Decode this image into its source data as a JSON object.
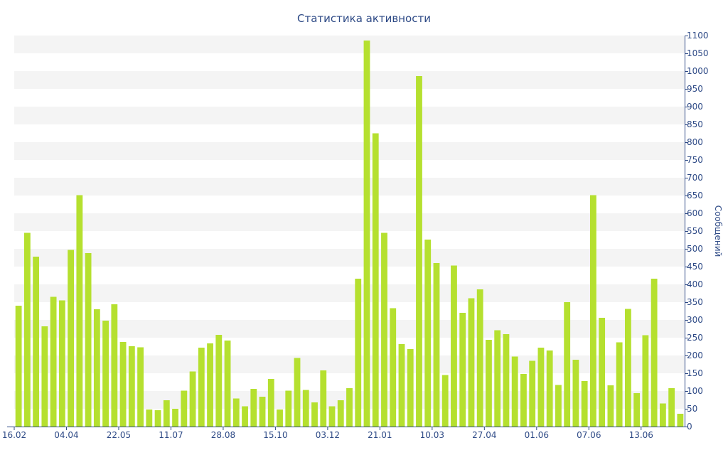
{
  "chart_data": {
    "type": "bar",
    "title": "Статистика активности",
    "xlabel": "",
    "ylabel": "Сообщений",
    "ylim": [
      0,
      1100
    ],
    "y_ticks": [
      0,
      50,
      100,
      150,
      200,
      250,
      300,
      350,
      400,
      450,
      500,
      550,
      600,
      650,
      700,
      750,
      800,
      850,
      900,
      950,
      1000,
      1050,
      1100
    ],
    "y_axis_side": "right",
    "grid": "horizontal alternating bands",
    "colors": {
      "bar": "#b5e02f",
      "text": "#2e4a86",
      "band": "#f4f4f4",
      "axis": "#2e4a86"
    },
    "x_tick_labels": [
      {
        "index": 0,
        "label": "16.02"
      },
      {
        "index": 6,
        "label": "04.04"
      },
      {
        "index": 12,
        "label": "22.05"
      },
      {
        "index": 18,
        "label": "11.07"
      },
      {
        "index": 24,
        "label": "28.08"
      },
      {
        "index": 30,
        "label": "15.10"
      },
      {
        "index": 36,
        "label": "03.12"
      },
      {
        "index": 42,
        "label": "21.01"
      },
      {
        "index": 48,
        "label": "10.03"
      },
      {
        "index": 54,
        "label": "27.04"
      },
      {
        "index": 60,
        "label": "01.06"
      },
      {
        "index": 66,
        "label": "07.06"
      },
      {
        "index": 72,
        "label": "13.06"
      }
    ],
    "values": [
      340,
      545,
      478,
      282,
      365,
      355,
      497,
      651,
      488,
      330,
      298,
      344,
      238,
      226,
      223,
      48,
      46,
      74,
      50,
      101,
      155,
      222,
      234,
      258,
      242,
      79,
      57,
      106,
      84,
      134,
      48,
      101,
      193,
      103,
      68,
      158,
      57,
      74,
      108,
      416,
      1086,
      825,
      545,
      333,
      232,
      218,
      986,
      526,
      460,
      145,
      453,
      320,
      361,
      386,
      244,
      271,
      260,
      197,
      148,
      185,
      222,
      214,
      117,
      350,
      188,
      128,
      651,
      306,
      116,
      237,
      331,
      94,
      257,
      416,
      65,
      108,
      36
    ]
  }
}
